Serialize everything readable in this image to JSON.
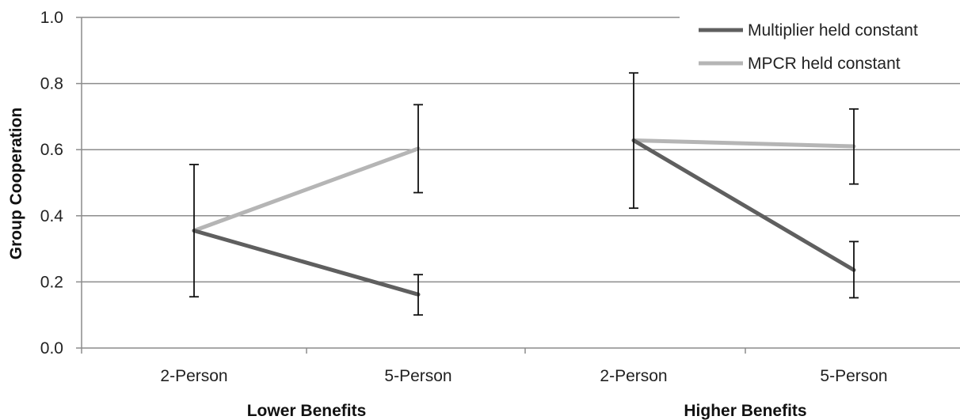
{
  "chart_data": {
    "type": "line",
    "ylabel": "Group Cooperation",
    "ylim": [
      0.0,
      1.0
    ],
    "yticks": [
      "0.0",
      "0.2",
      "0.4",
      "0.6",
      "0.8",
      "1.0"
    ],
    "legend": {
      "position": "top-right",
      "entries": [
        "Multiplier held constant",
        "MPCR held constant"
      ]
    },
    "colors": {
      "Multiplier held constant": "#5f5f5f",
      "MPCR held constant": "#b5b5b5",
      "error_bar": "#111111"
    },
    "grid": true,
    "panels": [
      {
        "title": "Lower Benefits",
        "categories": [
          "2-Person",
          "5-Person"
        ],
        "series": [
          {
            "name": "Multiplier held constant",
            "values": [
              0.355,
              0.162
            ]
          },
          {
            "name": "MPCR held constant",
            "values": [
              0.355,
              0.603
            ]
          }
        ],
        "error_bars": [
          {
            "category": "2-Person",
            "low": 0.155,
            "high": 0.555
          },
          {
            "category": "5-Person",
            "low": 0.1,
            "high": 0.222
          },
          {
            "category": "5-Person",
            "low": 0.47,
            "high": 0.736
          }
        ]
      },
      {
        "title": "Higher Benefits",
        "categories": [
          "2-Person",
          "5-Person"
        ],
        "series": [
          {
            "name": "Multiplier held constant",
            "values": [
              0.628,
              0.236
            ]
          },
          {
            "name": "MPCR held constant",
            "values": [
              0.628,
              0.61
            ]
          }
        ],
        "error_bars": [
          {
            "category": "2-Person",
            "low": 0.423,
            "high": 0.832
          },
          {
            "category": "5-Person",
            "low": 0.152,
            "high": 0.322
          },
          {
            "category": "5-Person",
            "low": 0.496,
            "high": 0.723
          }
        ]
      }
    ]
  }
}
